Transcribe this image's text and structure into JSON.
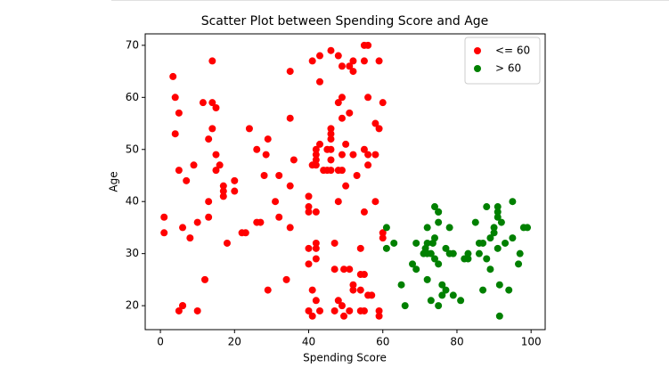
{
  "chart_data": {
    "type": "scatter",
    "title": "Scatter Plot between Spending Score and Age",
    "x_label": "Spending Score",
    "y_label": "Age",
    "xlim": [
      -4.1,
      103.8
    ],
    "ylim": [
      15.4,
      72.2
    ],
    "xticks": [
      0,
      20,
      40,
      60,
      80,
      100
    ],
    "yticks": [
      20,
      30,
      40,
      50,
      60,
      70
    ],
    "legend": "upper right",
    "series": [
      {
        "name": "<= 60",
        "color": "#ff0000",
        "x": [
          1,
          1,
          3.4,
          4,
          4,
          5,
          5,
          6,
          6,
          5,
          6,
          7,
          8,
          9,
          10,
          10,
          11.5,
          12,
          13,
          13,
          13,
          14,
          14,
          14,
          15,
          15,
          15,
          16,
          17,
          17,
          17,
          18,
          20,
          20,
          22,
          23,
          24,
          26,
          27,
          26,
          28,
          29,
          28.5,
          29,
          31,
          32,
          32,
          34,
          35,
          35,
          35,
          35,
          36,
          40,
          40,
          40,
          40,
          40,
          40,
          41,
          41,
          41,
          42,
          42,
          41,
          42,
          42,
          42,
          42,
          42,
          42,
          42,
          43,
          43,
          43,
          43,
          44,
          45,
          45,
          46,
          46,
          46,
          46,
          46,
          46,
          46,
          47,
          47,
          47,
          48,
          48,
          48,
          48,
          49,
          49,
          49,
          49,
          48,
          49,
          49,
          49.5,
          49.5,
          50,
          50,
          51,
          51,
          51,
          51,
          52,
          52,
          52,
          52,
          52,
          53,
          54,
          54,
          54,
          54,
          55,
          55,
          55,
          55,
          56,
          55,
          55,
          56,
          56,
          56,
          56,
          57,
          58,
          58,
          58,
          59,
          59,
          59,
          59,
          60,
          60,
          60
        ],
        "values": [
          37,
          34,
          64,
          60,
          53,
          57,
          46,
          35,
          20,
          19,
          20,
          44,
          33,
          47,
          36,
          19,
          59,
          25,
          37,
          40,
          52,
          67,
          54,
          59,
          58,
          49,
          46,
          47,
          43,
          42,
          41,
          32,
          44,
          42,
          34,
          34,
          54,
          36,
          36,
          50,
          45,
          52,
          49,
          23,
          40,
          37,
          45,
          25,
          43,
          35,
          65,
          56,
          48,
          41,
          39,
          38,
          31,
          28,
          19,
          18,
          67,
          47,
          49,
          48,
          23,
          21,
          32,
          31,
          29,
          47,
          38,
          50,
          68,
          63,
          51,
          19,
          46,
          46,
          50,
          46,
          52,
          54,
          53,
          69,
          50,
          48,
          32,
          27,
          19,
          59,
          21,
          46,
          68,
          66,
          46,
          20,
          49,
          40,
          56,
          60,
          18,
          27,
          51,
          43,
          66,
          27,
          19,
          57,
          65,
          67,
          24,
          23,
          49,
          45,
          23,
          31,
          26,
          19,
          67,
          26,
          19,
          70,
          22,
          50,
          38,
          70,
          60,
          47,
          49,
          22,
          49,
          40,
          55,
          54,
          67,
          19,
          18,
          34,
          59,
          33
        ]
      },
      {
        "name": "> 60",
        "color": "#008000",
        "x": [
          61,
          61,
          63,
          65,
          66,
          68,
          69,
          69,
          71,
          71.5,
          72,
          72,
          72,
          72,
          73,
          73,
          73.5,
          74,
          74,
          74,
          75,
          75,
          75,
          75,
          75,
          76,
          76,
          77,
          77,
          78,
          78,
          79,
          79,
          81,
          82,
          83,
          83,
          85,
          86,
          86,
          87,
          87,
          88,
          88,
          89,
          89,
          90,
          90,
          91,
          91,
          91,
          91.5,
          91,
          91.5,
          92,
          93,
          94,
          95,
          95,
          96.6,
          97,
          98,
          99
        ],
        "values": [
          35,
          31,
          32,
          24,
          20,
          28,
          27,
          32,
          30,
          31,
          30,
          32,
          35,
          25,
          30,
          21,
          32,
          33,
          29,
          39,
          36,
          38,
          38,
          28,
          20,
          22,
          24,
          23,
          31,
          30,
          35,
          22,
          30,
          21,
          29,
          30,
          29,
          36,
          32,
          30,
          32,
          23,
          39,
          29,
          27,
          33,
          35,
          34,
          37,
          38,
          39,
          24,
          31,
          18,
          36,
          32,
          23,
          40,
          33,
          28,
          30,
          35,
          35
        ]
      }
    ]
  }
}
